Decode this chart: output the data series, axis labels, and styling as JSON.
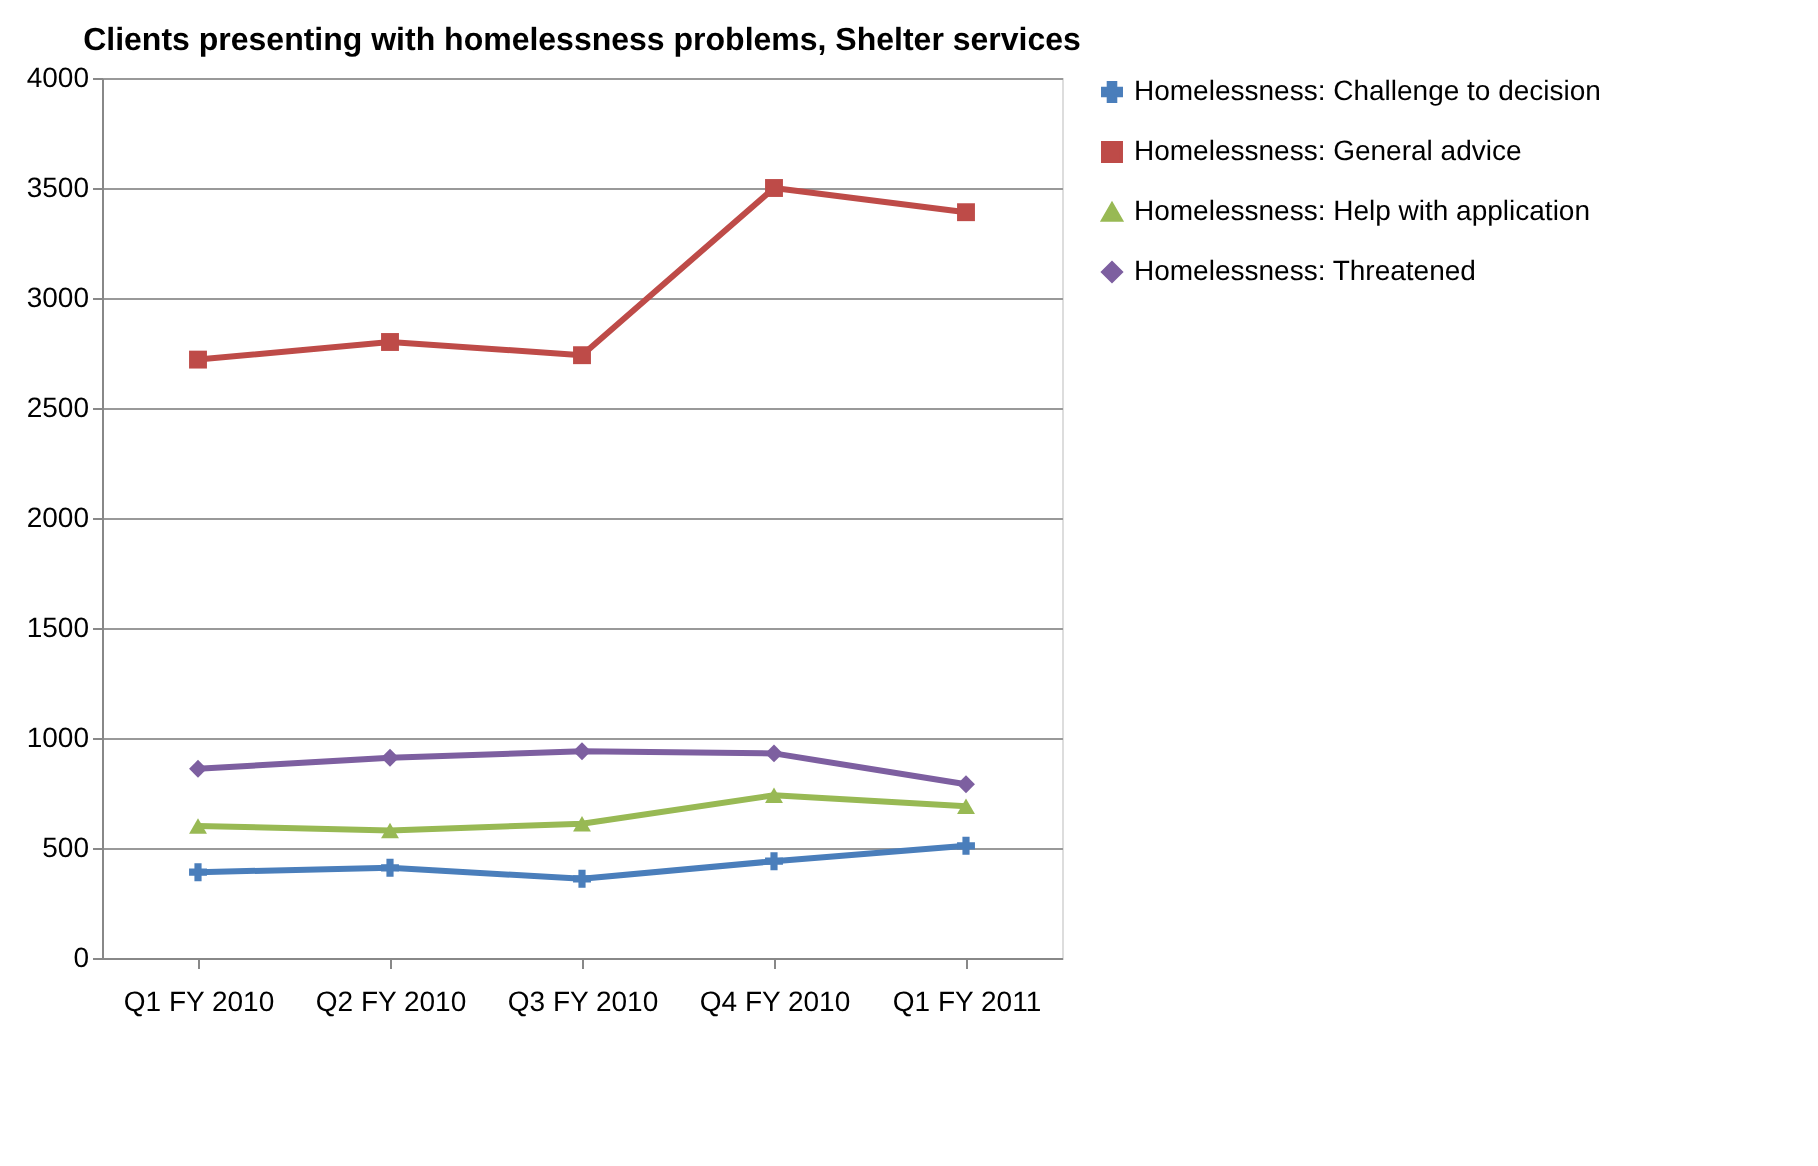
{
  "chart_data": {
    "type": "line",
    "title": "Clients presenting with homelessness problems, Shelter services",
    "categories": [
      "Q1 FY 2010",
      "Q2 FY 2010",
      "Q3 FY 2010",
      "Q4 FY 2010",
      "Q1 FY 2011"
    ],
    "series": [
      {
        "name": "Homelessness: Challenge to decision",
        "color": "#4a7ebb",
        "marker": "cross",
        "values": [
          390,
          410,
          360,
          440,
          510
        ]
      },
      {
        "name": "Homelessness: General advice",
        "color": "#be4b48",
        "marker": "square",
        "values": [
          2720,
          2800,
          2740,
          3500,
          3390
        ]
      },
      {
        "name": "Homelessness: Help with application",
        "color": "#98b954",
        "marker": "triangle",
        "values": [
          600,
          580,
          610,
          740,
          690
        ]
      },
      {
        "name": "Homelessness: Threatened",
        "color": "#7d5fa0",
        "marker": "diamond",
        "values": [
          860,
          910,
          940,
          930,
          790
        ]
      }
    ],
    "ylim": [
      0,
      4000
    ],
    "yticks": [
      0,
      500,
      1000,
      1500,
      2000,
      2500,
      3000,
      3500,
      4000
    ],
    "grid": "y",
    "legend": "right",
    "line_style": "solid"
  }
}
